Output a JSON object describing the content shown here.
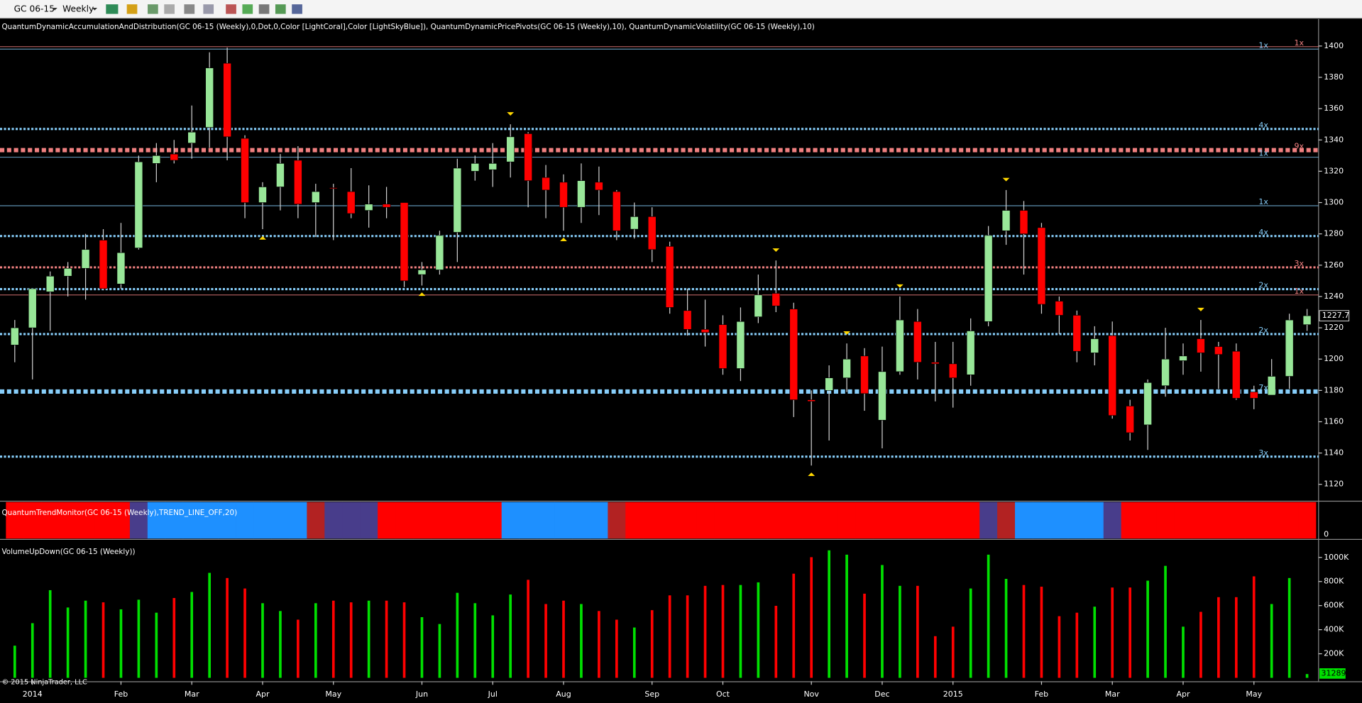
{
  "toolbar": {
    "symbol": "GC 06-15",
    "interval": "Weekly"
  },
  "footer": "© 2015 NinjaTrader, LLC",
  "chart_data": [
    {
      "type": "candlestick",
      "title": "QuantumDynamicAccumulationAndDistribution(GC 06-15 (Weekly),0,Dot,0,Color [LightCoral],Color [LightSkyBlue]), QuantumDynamicPricePivots(GC 06-15 (Weekly),10), QuantumDynamicVolatility(GC 06-15 (Weekly),10)",
      "categories": [
        null,
        "2014",
        null,
        null,
        null,
        null,
        "Feb",
        null,
        null,
        null,
        "Mar",
        null,
        null,
        null,
        "Apr",
        null,
        null,
        null,
        "May",
        null,
        null,
        null,
        null,
        "Jun",
        null,
        null,
        null,
        "Jul",
        null,
        null,
        null,
        "Aug",
        null,
        null,
        null,
        null,
        "Sep",
        null,
        null,
        null,
        "Oct",
        null,
        null,
        null,
        null,
        "Nov",
        null,
        null,
        null,
        "Dec",
        null,
        null,
        null,
        "2015",
        null,
        null,
        null,
        null,
        "Feb",
        null,
        null,
        null,
        "Mar",
        null,
        null,
        null,
        "Apr",
        null,
        null,
        null,
        "May",
        null,
        null,
        null
      ],
      "open": [
        1209,
        1220,
        1243,
        1253,
        1258,
        1276,
        1248,
        1271,
        1325,
        1331,
        1338,
        1348,
        1389,
        1341,
        1300,
        1310,
        1327,
        1300,
        1309.5,
        1307,
        1295,
        1299,
        1300,
        1254,
        1257,
        1281,
        1320,
        1321,
        1326,
        1344,
        1316,
        1313,
        1297,
        1313,
        1307,
        1283,
        1291,
        1272,
        1231,
        1219,
        1222,
        1194,
        1227,
        1242,
        1232,
        1174,
        1180,
        1188,
        1202,
        1161,
        1192,
        1224,
        1198,
        1197,
        1190,
        1224,
        1282,
        1295,
        1284,
        1237,
        1228,
        1204,
        1215,
        1170,
        1158,
        1183,
        1199,
        1213,
        1208,
        1205,
        1179,
        1177,
        1189,
        1222
      ],
      "high": [
        1225,
        1245,
        1256,
        1262,
        1280,
        1283,
        1287,
        1330,
        1338,
        1340,
        1362,
        1396,
        1399,
        1343,
        1313,
        1331,
        1336,
        1312,
        1312,
        1322,
        1311,
        1310,
        1300,
        1262,
        1282,
        1328,
        1330,
        1338,
        1350,
        1345,
        1324,
        1318,
        1325,
        1323,
        1308,
        1300,
        1297,
        1275,
        1245,
        1238,
        1228,
        1233,
        1254,
        1263,
        1236,
        1180,
        1196,
        1210,
        1207,
        1208,
        1240,
        1232,
        1211,
        1211,
        1226,
        1285,
        1308,
        1301,
        1287,
        1240,
        1231,
        1221,
        1224,
        1174,
        1187,
        1220,
        1210,
        1225,
        1211,
        1210,
        1183,
        1200,
        1229,
        1232
      ],
      "low": [
        1198,
        1187,
        1218,
        1240,
        1238,
        1244,
        1245,
        1270,
        1313,
        1325,
        1328,
        1335,
        1327,
        1290,
        1283,
        1295,
        1290,
        1278,
        1276,
        1290,
        1284,
        1290,
        1246,
        1247,
        1254,
        1262,
        1314,
        1310,
        1316,
        1297,
        1290,
        1282,
        1287,
        1292,
        1276,
        1277,
        1262,
        1229,
        1215,
        1208,
        1190,
        1186,
        1223,
        1230,
        1163,
        1132,
        1148,
        1179,
        1167,
        1143,
        1190,
        1187,
        1173,
        1169,
        1183,
        1221,
        1273,
        1254,
        1229,
        1216,
        1198,
        1196,
        1162,
        1148,
        1142,
        1176,
        1190,
        1192,
        1181,
        1174,
        1168,
        1177,
        1181,
        1218
      ],
      "close": [
        1220,
        1245,
        1253,
        1258,
        1270,
        1245,
        1268,
        1326,
        1330,
        1327,
        1345,
        1386,
        1342,
        1300,
        1310,
        1325,
        1299,
        1307,
        1309,
        1293,
        1299,
        1297,
        1250,
        1257,
        1279,
        1322,
        1325,
        1325,
        1342,
        1314,
        1308,
        1297,
        1314,
        1308,
        1282,
        1291,
        1270,
        1233,
        1219,
        1217,
        1194,
        1224,
        1241,
        1234,
        1174,
        1173,
        1188,
        1200,
        1178,
        1192,
        1225,
        1198,
        1197,
        1188,
        1218,
        1279,
        1295,
        1280,
        1235,
        1228,
        1205,
        1213,
        1164,
        1153,
        1185,
        1200,
        1202,
        1204,
        1203,
        1175,
        1175,
        1189,
        1225,
        1227.7
      ],
      "up_color": "#98e698",
      "down_color": "#ff0000",
      "wick_color": "#d0d0d0",
      "ylim": [
        1109.5,
        1417.2
      ],
      "yticks": [
        1120,
        1140,
        1160,
        1180,
        1200,
        1220,
        1240,
        1260,
        1280,
        1300,
        1320,
        1340,
        1360,
        1380,
        1400
      ],
      "levels": [
        {
          "value": 1399.6,
          "label": "1x",
          "color": "#f08080",
          "style": "thin"
        },
        {
          "value": 1398,
          "label": "1x",
          "color": "#87cefa",
          "style": "thin"
        },
        {
          "value": 1347,
          "label": "4x",
          "color": "#87cefa",
          "style": "dotted"
        },
        {
          "value": 1333.5,
          "label": "9x",
          "color": "#f08080",
          "style": "heavy"
        },
        {
          "value": 1329,
          "label": "1x",
          "color": "#87cefa",
          "style": "thin"
        },
        {
          "value": 1298,
          "label": "1x",
          "color": "#87cefa",
          "style": "thin"
        },
        {
          "value": 1278.6,
          "label": "4x",
          "color": "#87cefa",
          "style": "dotted"
        },
        {
          "value": 1258.6,
          "label": "3x",
          "color": "#f08080",
          "style": "dotted"
        },
        {
          "value": 1244.7,
          "label": "2x",
          "color": "#87cefa",
          "style": "dotted"
        },
        {
          "value": 1241,
          "label": "1x",
          "color": "#f08080",
          "style": "thin"
        },
        {
          "value": 1216,
          "label": "2x",
          "color": "#87cefa",
          "style": "dotted"
        },
        {
          "value": 1179.3,
          "label": "7x",
          "color": "#87cefa",
          "style": "heavy"
        },
        {
          "value": 1137.7,
          "label": "3x",
          "color": "#87cefa",
          "style": "dotted"
        }
      ],
      "pivot_highs": [
        28,
        43,
        47,
        50,
        56,
        67
      ],
      "pivot_lows": [
        14,
        23,
        31,
        45
      ],
      "pivot_color": "#ffd700"
    },
    {
      "type": "trend_strip",
      "title": "QuantumTrendMonitor(GC 06-15 (Weekly),TREND_LINE_OFF,20)",
      "yticks": [
        0
      ],
      "colors": [
        "#ff0000",
        "#ff0000",
        "#ff0000",
        "#ff0000",
        "#ff0000",
        "#ff0000",
        "#ff0000",
        "#483d8b",
        "#1e90ff",
        "#1e90ff",
        "#1e90ff",
        "#1e90ff",
        "#1e90ff",
        "#1e90ff",
        "#1e90ff",
        "#1e90ff",
        "#1e90ff",
        "#b22222",
        "#483d8b",
        "#483d8b",
        "#483d8b",
        "#ff0000",
        "#ff0000",
        "#ff0000",
        "#ff0000",
        "#ff0000",
        "#ff0000",
        "#ff0000",
        "#1e90ff",
        "#1e90ff",
        "#1e90ff",
        "#1e90ff",
        "#1e90ff",
        "#1e90ff",
        "#b22222",
        "#ff0000",
        "#ff0000",
        "#ff0000",
        "#ff0000",
        "#ff0000",
        "#ff0000",
        "#ff0000",
        "#ff0000",
        "#ff0000",
        "#ff0000",
        "#ff0000",
        "#ff0000",
        "#ff0000",
        "#ff0000",
        "#ff0000",
        "#ff0000",
        "#ff0000",
        "#ff0000",
        "#ff0000",
        "#ff0000",
        "#483d8b",
        "#b22222",
        "#1e90ff",
        "#1e90ff",
        "#1e90ff",
        "#1e90ff",
        "#1e90ff",
        "#483d8b",
        "#ff0000",
        "#ff0000",
        "#ff0000",
        "#ff0000",
        "#ff0000",
        "#ff0000",
        "#ff0000",
        "#ff0000",
        "#ff0000",
        "#ff0000",
        "#ff0000"
      ]
    },
    {
      "type": "bar",
      "title": "VolumeUpDown(GC 06-15 (Weekly))",
      "values": [
        267000,
        454000,
        728000,
        584000,
        641000,
        627000,
        569000,
        649000,
        541000,
        663000,
        713000,
        872000,
        829000,
        742000,
        620000,
        555000,
        483000,
        620000,
        641000,
        627000,
        641000,
        641000,
        627000,
        504000,
        447000,
        706000,
        620000,
        519000,
        692000,
        814000,
        613000,
        641000,
        613000,
        555000,
        483000,
        418000,
        562000,
        685000,
        685000,
        764000,
        771000,
        771000,
        793000,
        598000,
        865000,
        1002000,
        1059000,
        1023000,
        699000,
        937000,
        764000,
        764000,
        346000,
        425000,
        742000,
        1023000,
        822000,
        771000,
        757000,
        512000,
        541000,
        591000,
        750000,
        750000,
        807000,
        930000,
        425000,
        548000,
        670000,
        670000,
        843000,
        613000,
        829000,
        31289
      ],
      "up_color": "#00e000",
      "down_color": "#ff0000",
      "ylim": [
        0,
        1100000
      ],
      "yticks": [
        {
          "value": 200000,
          "label": "200K"
        },
        {
          "value": 400000,
          "label": "400K"
        },
        {
          "value": 600000,
          "label": "600K"
        },
        {
          "value": 800000,
          "label": "800K"
        },
        {
          "value": 1000000,
          "label": "1000K"
        }
      ]
    }
  ]
}
